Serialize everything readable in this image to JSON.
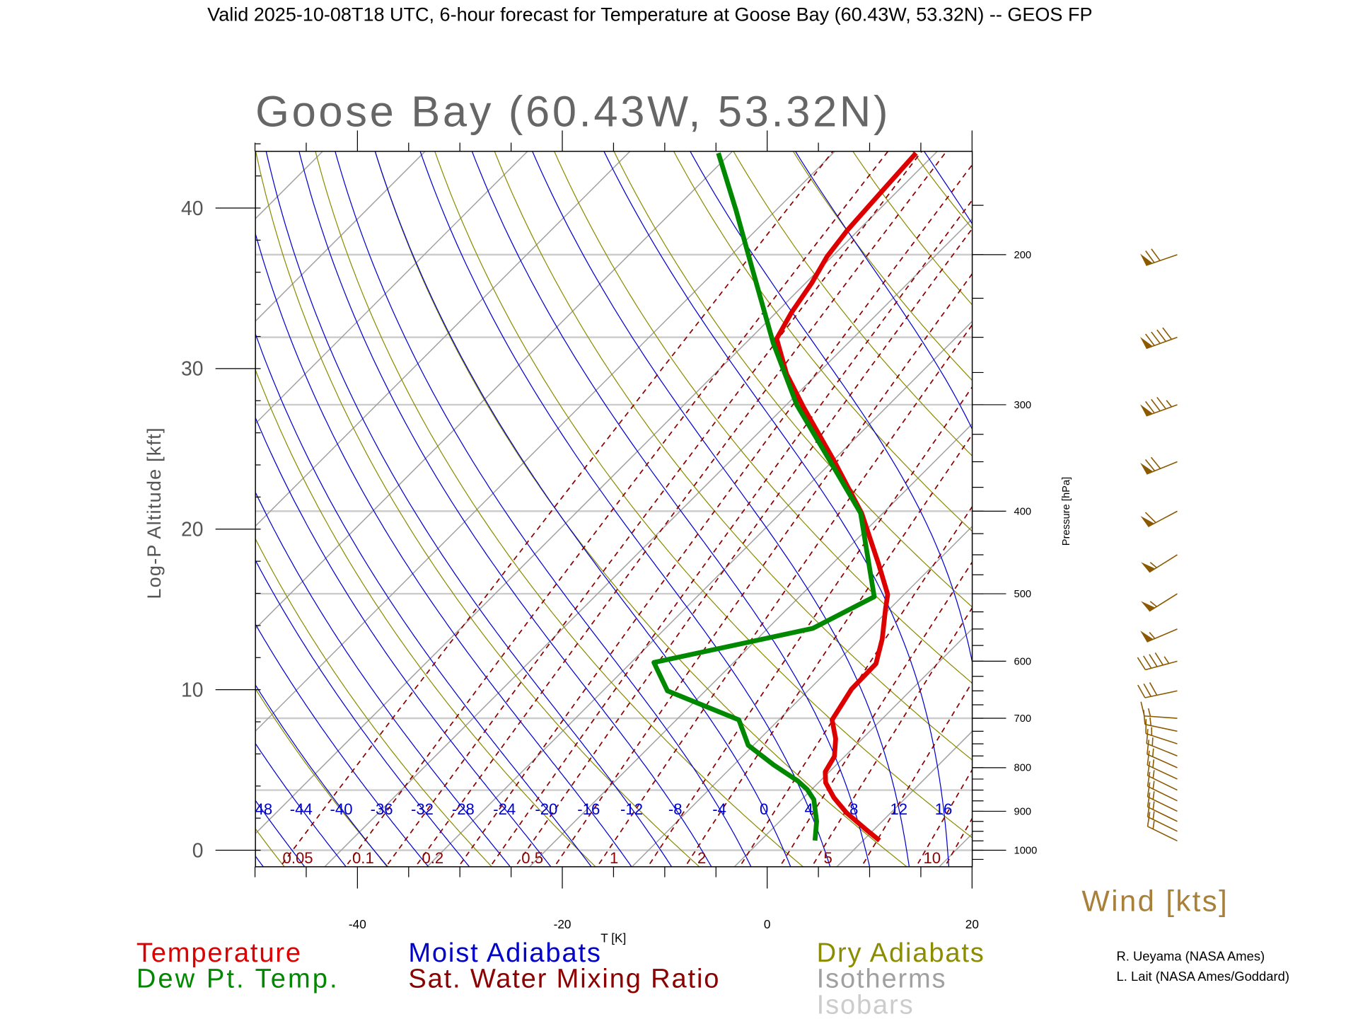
{
  "header": {
    "title": "Valid 2025-10-08T18 UTC, 6-hour forecast for Temperature at Goose Bay (60.43W, 53.32N) -- GEOS FP"
  },
  "chart_data": {
    "type": "line",
    "subtype": "skew-T log-P diagram",
    "title": "Goose Bay (60.43W, 53.32N)",
    "xlabel": "T [K]",
    "ylabel": "Log-P Altitude [kft]",
    "y2label": "Pressure [hPa]",
    "xlim": [
      -50,
      20
    ],
    "pressure_range_hpa": [
      1045,
      151
    ],
    "x_ticks": [
      {
        "value": -40,
        "label": "-40"
      },
      {
        "value": -20,
        "label": "-20"
      },
      {
        "value": 0,
        "label": "0"
      },
      {
        "value": 20,
        "label": "20"
      }
    ],
    "altitude_ticks": [
      {
        "value": 0,
        "label": "0"
      },
      {
        "value": 10,
        "label": "10"
      },
      {
        "value": 20,
        "label": "20"
      },
      {
        "value": 30,
        "label": "30"
      },
      {
        "value": 40,
        "label": "40"
      }
    ],
    "pressure_ticks": [
      {
        "value": 200,
        "label": "200"
      },
      {
        "value": 300,
        "label": "300"
      },
      {
        "value": 400,
        "label": "400"
      },
      {
        "value": 500,
        "label": "500"
      },
      {
        "value": 600,
        "label": "600"
      },
      {
        "value": 700,
        "label": "700"
      },
      {
        "value": 800,
        "label": "800"
      },
      {
        "value": 900,
        "label": "900"
      },
      {
        "value": 1000,
        "label": "1000"
      }
    ],
    "isobars_hpa": [
      1000,
      850,
      700,
      500,
      400,
      300,
      250,
      200
    ],
    "moist_adiabat_labels": [
      {
        "value": -48,
        "label": "-48"
      },
      {
        "value": -44,
        "label": "-44"
      },
      {
        "value": -40,
        "label": "-40"
      },
      {
        "value": -36,
        "label": "-36"
      },
      {
        "value": -32,
        "label": "-32"
      },
      {
        "value": -28,
        "label": "-28"
      },
      {
        "value": -24,
        "label": "-24"
      },
      {
        "value": -20,
        "label": "-20"
      },
      {
        "value": -16,
        "label": "-16"
      },
      {
        "value": -12,
        "label": "-12"
      },
      {
        "value": -8,
        "label": "-8"
      },
      {
        "value": -4,
        "label": "-4"
      },
      {
        "value": 0,
        "label": "0"
      },
      {
        "value": 4,
        "label": "4"
      },
      {
        "value": 8,
        "label": "8"
      },
      {
        "value": 12,
        "label": "12"
      },
      {
        "value": 16,
        "label": "16"
      }
    ],
    "mixing_ratio_lines_gkg": [
      0.05,
      0.1,
      0.15,
      0.2,
      0.3,
      0.4,
      0.5,
      0.7,
      1,
      1.5,
      2,
      3,
      4,
      5,
      7,
      10,
      12,
      15,
      20
    ],
    "mixing_ratio_labels": [
      {
        "value": 0.05,
        "label": "0.05"
      },
      {
        "value": 0.1,
        "label": "0.1"
      },
      {
        "value": 0.2,
        "label": "0.2"
      },
      {
        "value": 0.5,
        "label": "0.5"
      },
      {
        "value": 1,
        "label": "1"
      },
      {
        "value": 2,
        "label": "2"
      },
      {
        "value": 5,
        "label": "5"
      },
      {
        "value": 10,
        "label": "10"
      }
    ],
    "series": [
      {
        "name": "Temperature",
        "color": "#dd0000",
        "points": [
          {
            "p": 974,
            "t": 8.4
          },
          {
            "p": 943,
            "t": 5.8
          },
          {
            "p": 904,
            "t": 2.5
          },
          {
            "p": 868,
            "t": -0.2
          },
          {
            "p": 833,
            "t": -2.5
          },
          {
            "p": 809,
            "t": -3.6
          },
          {
            "p": 776,
            "t": -4.2
          },
          {
            "p": 740,
            "t": -5.8
          },
          {
            "p": 703,
            "t": -8.0
          },
          {
            "p": 647,
            "t": -9.1
          },
          {
            "p": 604,
            "t": -9.2
          },
          {
            "p": 565,
            "t": -11.0
          },
          {
            "p": 521,
            "t": -13.6
          },
          {
            "p": 501,
            "t": -14.8
          },
          {
            "p": 463,
            "t": -18.5
          },
          {
            "p": 402,
            "t": -25.3
          },
          {
            "p": 349,
            "t": -33.1
          },
          {
            "p": 302,
            "t": -41.3
          },
          {
            "p": 276,
            "t": -46.2
          },
          {
            "p": 251,
            "t": -50.6
          },
          {
            "p": 234,
            "t": -51.7
          },
          {
            "p": 216,
            "t": -52.6
          },
          {
            "p": 201,
            "t": -53.7
          },
          {
            "p": 187,
            "t": -54.3
          },
          {
            "p": 169,
            "t": -54.7
          },
          {
            "p": 152,
            "t": -55.1
          }
        ]
      },
      {
        "name": "Dew Pt. Temp.",
        "color": "#008800",
        "points": [
          {
            "p": 974,
            "t": 2.1
          },
          {
            "p": 925,
            "t": 0.4
          },
          {
            "p": 872,
            "t": -2.0
          },
          {
            "p": 849,
            "t": -3.6
          },
          {
            "p": 829,
            "t": -5.4
          },
          {
            "p": 794,
            "t": -9.3
          },
          {
            "p": 753,
            "t": -13.7
          },
          {
            "p": 703,
            "t": -17.1
          },
          {
            "p": 650,
            "t": -26.9
          },
          {
            "p": 602,
            "t": -31.0
          },
          {
            "p": 549,
            "t": -18.8
          },
          {
            "p": 504,
            "t": -15.9
          },
          {
            "p": 402,
            "t": -25.4
          },
          {
            "p": 357,
            "t": -32.2
          },
          {
            "p": 300,
            "t": -42.2
          },
          {
            "p": 254,
            "t": -50.5
          },
          {
            "p": 206,
            "t": -60.2
          },
          {
            "p": 177,
            "t": -67.2
          },
          {
            "p": 152,
            "t": -74.4
          }
        ]
      }
    ],
    "wind_barbs": [
      {
        "p": 200,
        "dir": 251,
        "kt": 70
      },
      {
        "p": 250,
        "dir": 250,
        "kt": 90
      },
      {
        "p": 300,
        "dir": 250,
        "kt": 85
      },
      {
        "p": 350,
        "dir": 248,
        "kt": 70
      },
      {
        "p": 400,
        "dir": 242,
        "kt": 60
      },
      {
        "p": 450,
        "dir": 238,
        "kt": 55
      },
      {
        "p": 500,
        "dir": 238,
        "kt": 55
      },
      {
        "p": 550,
        "dir": 247,
        "kt": 55
      },
      {
        "p": 600,
        "dir": 255,
        "kt": 45
      },
      {
        "p": 650,
        "dir": 258,
        "kt": 30
      },
      {
        "p": 700,
        "dir": 274,
        "kt": 15
      },
      {
        "p": 725,
        "dir": 282,
        "kt": 15
      },
      {
        "p": 750,
        "dir": 288,
        "kt": 15
      },
      {
        "p": 775,
        "dir": 292,
        "kt": 15
      },
      {
        "p": 800,
        "dir": 294,
        "kt": 15
      },
      {
        "p": 825,
        "dir": 295,
        "kt": 15
      },
      {
        "p": 850,
        "dir": 296,
        "kt": 15
      },
      {
        "p": 875,
        "dir": 296,
        "kt": 15
      },
      {
        "p": 900,
        "dir": 296,
        "kt": 15
      },
      {
        "p": 925,
        "dir": 296,
        "kt": 15
      },
      {
        "p": 950,
        "dir": 296,
        "kt": 15
      },
      {
        "p": 975,
        "dir": 296,
        "kt": 15
      }
    ],
    "legend": {
      "temperature": "Temperature",
      "dewpoint": "Dew Pt. Temp.",
      "moist_adiabats": "Moist Adiabats",
      "mixing_ratio": "Sat. Water Mixing Ratio",
      "dry_adiabats": "Dry Adiabats",
      "isotherms": "Isotherms",
      "isobars": "Isobars"
    },
    "wind_title": "Wind [kts]",
    "colors": {
      "temperature": "#dd0000",
      "dewpoint": "#008800",
      "moist": "#0000cc",
      "mixing": "#8b0000",
      "dry": "#8c8c00",
      "isotherm": "#a0a0a0",
      "isobar": "#cccccc",
      "wind": "#8b5a00"
    }
  },
  "credits": [
    "R. Ueyama (NASA Ames)",
    "L. Lait (NASA Ames/Goddard)"
  ]
}
